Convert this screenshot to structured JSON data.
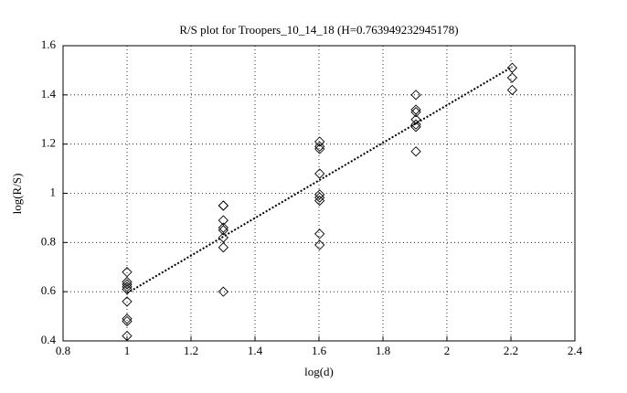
{
  "chart_data": {
    "type": "scatter",
    "title": "R/S plot for Troopers_10_14_18 (H=0.763949232945178)",
    "x_label": "log(d)",
    "y_label": "log(R/S)",
    "xlim": [
      0.8,
      2.4
    ],
    "ylim": [
      0.4,
      1.6
    ],
    "xticks": [
      0.8,
      1,
      1.2,
      1.4,
      1.6,
      1.8,
      2,
      2.2,
      2.4
    ],
    "yticks": [
      0.4,
      0.6,
      0.8,
      1,
      1.2,
      1.4,
      1.6
    ],
    "grid": true,
    "points": {
      "color": "#000000",
      "x": [
        1,
        1,
        1,
        1,
        1,
        1,
        1,
        1,
        1,
        1.301,
        1.301,
        1.301,
        1.301,
        1.301,
        1.301,
        1.301,
        1.301,
        1.602,
        1.602,
        1.602,
        1.602,
        1.602,
        1.602,
        1.602,
        1.602,
        1.602,
        1.903,
        1.903,
        1.903,
        1.903,
        1.903,
        1.903,
        1.903,
        2.204,
        2.204,
        2.204
      ],
      "y": [
        0.68,
        0.64,
        0.63,
        0.62,
        0.61,
        0.56,
        0.49,
        0.48,
        0.42,
        0.95,
        0.95,
        0.89,
        0.86,
        0.85,
        0.82,
        0.78,
        0.6,
        1.21,
        1.19,
        1.18,
        1.08,
        0.995,
        0.983,
        0.97,
        0.835,
        0.79,
        1.4,
        1.34,
        1.33,
        1.3,
        1.28,
        1.27,
        1.17,
        1.51,
        1.47,
        1.42
      ]
    },
    "fit_line": {
      "color": "#000000",
      "x": [
        1,
        2.204
      ],
      "y": [
        0.594,
        1.514
      ]
    }
  }
}
